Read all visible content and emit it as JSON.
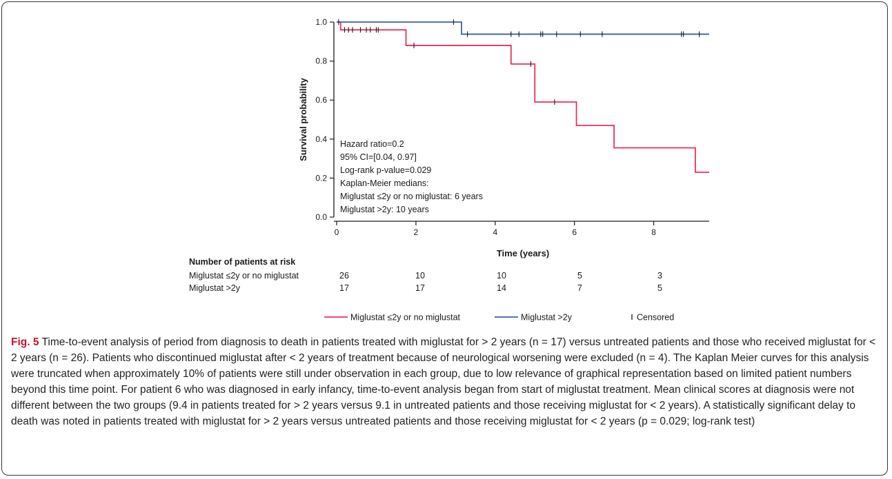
{
  "chart_data": {
    "type": "line",
    "subtype": "kaplan-meier",
    "xlabel": "Time (years)",
    "ylabel": "Survival probability",
    "xlim": [
      0,
      9.4
    ],
    "ylim": [
      0,
      1.0
    ],
    "xticks": [
      "0",
      "2",
      "4",
      "6",
      "8"
    ],
    "yticks": [
      "0.0",
      "0.2",
      "0.4",
      "0.6",
      "0.8",
      "1.0"
    ],
    "grid": false,
    "series": [
      {
        "name": "Miglustat ≤2y or no miglustat",
        "color": "#e8305b",
        "steps": [
          [
            0,
            1.0
          ],
          [
            0.1,
            0.96
          ],
          [
            1.75,
            0.88
          ],
          [
            4.4,
            0.785
          ],
          [
            5.0,
            0.59
          ],
          [
            6.05,
            0.47
          ],
          [
            7.0,
            0.355
          ],
          [
            9.05,
            0.23
          ],
          [
            9.4,
            0.23
          ]
        ],
        "censored": [
          [
            0.2,
            0.96
          ],
          [
            0.3,
            0.96
          ],
          [
            0.4,
            0.96
          ],
          [
            0.6,
            0.96
          ],
          [
            0.75,
            0.96
          ],
          [
            0.85,
            0.96
          ],
          [
            1.0,
            0.96
          ],
          [
            1.05,
            0.96
          ],
          [
            1.95,
            0.88
          ],
          [
            4.9,
            0.785
          ],
          [
            5.5,
            0.59
          ]
        ]
      },
      {
        "name": "Miglustat >2y",
        "color": "#3a5ea8",
        "steps": [
          [
            0,
            1.0
          ],
          [
            3.15,
            0.938
          ],
          [
            9.4,
            0.938
          ]
        ],
        "censored": [
          [
            0.05,
            1.0
          ],
          [
            2.95,
            1.0
          ],
          [
            3.3,
            0.938
          ],
          [
            4.4,
            0.938
          ],
          [
            4.6,
            0.938
          ],
          [
            5.15,
            0.938
          ],
          [
            5.2,
            0.938
          ],
          [
            5.55,
            0.938
          ],
          [
            6.15,
            0.938
          ],
          [
            6.7,
            0.938
          ],
          [
            8.7,
            0.938
          ],
          [
            8.75,
            0.938
          ],
          [
            9.15,
            0.938
          ]
        ]
      }
    ],
    "annotation_lines": [
      "Hazard ratio=0.2",
      "95% CI=[0.04, 0.97]",
      "Log-rank p-value=0.029",
      "Kaplan-Meier medians:",
      "Miglustat ≤2y or no miglustat: 6 years",
      "Miglustat >2y: 10 years"
    ],
    "risk_table": {
      "title": "Number of patients at risk",
      "rows": [
        {
          "label": "Miglustat ≤2y or no miglustat",
          "values": [
            "26",
            "10",
            "10",
            "5",
            "3"
          ]
        },
        {
          "label": "Miglustat >2y",
          "values": [
            "17",
            "17",
            "14",
            "7",
            "5"
          ]
        }
      ]
    },
    "legend": {
      "placement": "bottom-center",
      "items": [
        {
          "label": "Miglustat ≤2y or no miglustat",
          "kind": "line",
          "color": "#e8305b"
        },
        {
          "label": "Miglustat >2y",
          "kind": "line",
          "color": "#3a5ea8"
        },
        {
          "label": "Censored",
          "kind": "tick",
          "color": "#1a1a1a"
        }
      ]
    }
  },
  "caption": {
    "label": "Fig. 5",
    "text": "Time-to-event analysis of period from diagnosis to death in patients treated with miglustat for > 2 years (n = 17) versus untreated patients and those who received miglustat for < 2 years (n = 26). Patients who discontinued miglustat after < 2 years of treatment because of neurological worsening were excluded (n = 4). The Kaplan Meier curves for this analysis were truncated when approximately 10% of patients were still under observation in each group, due to low relevance of graphical representation based on limited patient numbers beyond this time point. For patient 6 who was diagnosed in early infancy, time-to-event analysis began from start of miglustat treatment. Mean clinical scores at diagnosis were not different between the two groups (9.4 in patients treated for > 2 years versus 9.1 in untreated patients and those receiving miglustat for < 2 years). A statistically significant delay to death was noted in patients treated with miglustat for > 2 years versus untreated patients and those receiving miglustat for < 2 years (p = 0.029; log-rank test)"
  }
}
